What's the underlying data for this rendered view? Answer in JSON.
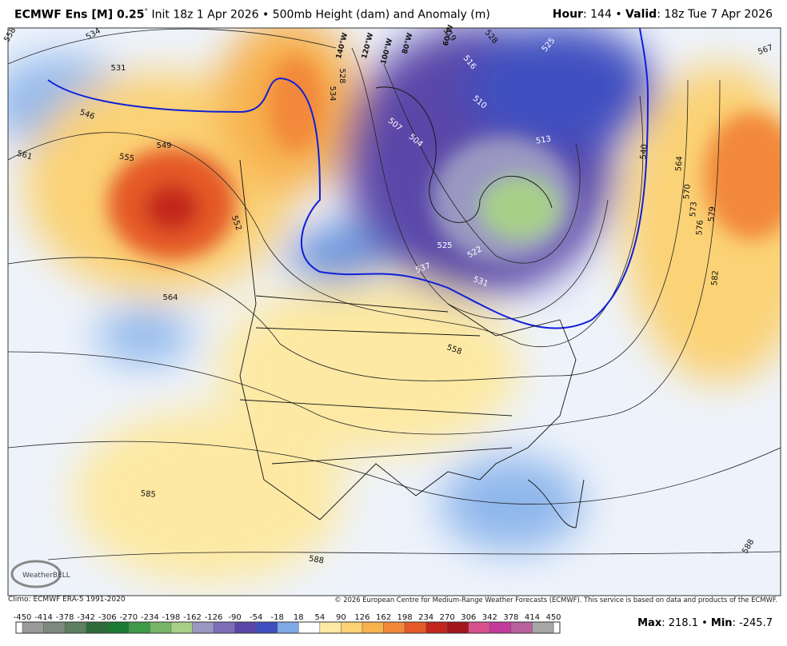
{
  "header": {
    "model": "ECMWF Ens [M] 0.25",
    "degree": "°",
    "info": "Init 18z 1 Apr 2026 • 500mb Height (dam) and Anomaly (m)",
    "hour_label": "Hour",
    "hour": "144",
    "sep": "•",
    "valid_label": "Valid",
    "valid": ": 18z Tue 7 Apr 2026"
  },
  "map": {
    "contour_labels": [
      "558",
      "534",
      "531",
      "546",
      "549",
      "555",
      "561",
      "552",
      "564",
      "585",
      "588",
      "534",
      "528",
      "519",
      "528",
      "516",
      "525",
      "510",
      "507",
      "513",
      "504",
      "525",
      "522",
      "531",
      "537",
      "558",
      "540",
      "564",
      "570",
      "573",
      "576",
      "579",
      "582",
      "567",
      "588"
    ],
    "meridian_labels": [
      "140°W",
      "120°W",
      "100°W",
      "80°W",
      "60°W"
    ]
  },
  "logo": {
    "name": "WeatherBELL"
  },
  "footer": {
    "climo": "Climo: ECMWF ERA-5 1991-2020",
    "copyright": "© 2026 European Centre for Medium-Range Weather Forecasts (ECMWF). This service is based on data and products of the ECMWF."
  },
  "colorbar": {
    "ticks": [
      -450,
      -414,
      -378,
      -342,
      -306,
      -270,
      -234,
      -198,
      -162,
      -126,
      -90,
      -54,
      -18,
      18,
      54,
      90,
      126,
      162,
      198,
      234,
      270,
      306,
      342,
      378,
      414,
      450
    ],
    "colors": [
      "#9a9a9a",
      "#7e8a7e",
      "#5e7f62",
      "#2f6b3a",
      "#1c7a34",
      "#3f9a4a",
      "#76b567",
      "#a8cf88",
      "#9a98c2",
      "#7c6fb8",
      "#5a47a8",
      "#3f4fc0",
      "#7ea9e6",
      "#ffffff",
      "#fde9a3",
      "#fbd274",
      "#f7b14d",
      "#f2883a",
      "#e55a28",
      "#c3261c",
      "#a3151c",
      "#d9508e",
      "#c43a9b",
      "#b9609f",
      "#a7a7a7"
    ]
  },
  "stats": {
    "max_label": "Max",
    "max": 218.1,
    "min_label": "Min",
    "min": -245.7
  }
}
